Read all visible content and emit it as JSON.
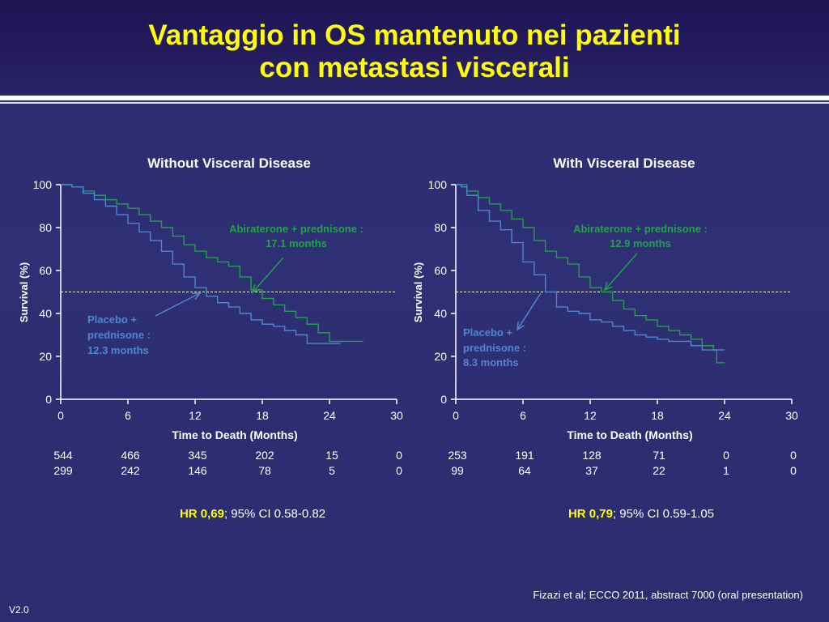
{
  "header": {
    "title_line1": "Vantaggio in OS mantenuto nei pazienti",
    "title_line2": "con metastasi viscerali"
  },
  "colors": {
    "title": "#ffff00",
    "abiraterone": "#22a24a",
    "placebo": "#4f86d0",
    "hr": "#ffff00",
    "background": "#2c2d70"
  },
  "chart_data": [
    {
      "type": "line",
      "title": "Without Visceral Disease",
      "xlabel": "Time to Death (Months)",
      "ylabel": "Survival (%)",
      "xlim": [
        0,
        30
      ],
      "ylim": [
        0,
        100
      ],
      "xticks": [
        "0",
        "6",
        "12",
        "18",
        "24",
        "30"
      ],
      "yticks": [
        "0",
        "20",
        "40",
        "60",
        "80",
        "100"
      ],
      "reference_line_y": 50,
      "series": [
        {
          "name": "Abiraterone + prednisone",
          "color": "#22a24a",
          "points": [
            [
              0,
              100
            ],
            [
              1,
              99
            ],
            [
              2,
              97
            ],
            [
              3,
              95
            ],
            [
              4,
              93
            ],
            [
              5,
              91
            ],
            [
              6,
              89
            ],
            [
              7,
              86
            ],
            [
              8,
              83
            ],
            [
              9,
              80
            ],
            [
              10,
              76
            ],
            [
              11,
              72
            ],
            [
              12,
              69
            ],
            [
              13,
              66
            ],
            [
              14,
              64
            ],
            [
              15,
              62
            ],
            [
              16,
              57
            ],
            [
              17,
              51
            ],
            [
              18,
              47
            ],
            [
              19,
              44
            ],
            [
              20,
              41
            ],
            [
              21,
              38
            ],
            [
              22,
              35
            ],
            [
              23,
              31
            ],
            [
              24,
              27
            ],
            [
              25,
              27
            ],
            [
              26,
              27
            ],
            [
              27,
              27
            ]
          ]
        },
        {
          "name": "Placebo + prednisone",
          "color": "#4f86d0",
          "points": [
            [
              0,
              100
            ],
            [
              1,
              99
            ],
            [
              2,
              96
            ],
            [
              3,
              93
            ],
            [
              4,
              90
            ],
            [
              5,
              86
            ],
            [
              6,
              82
            ],
            [
              7,
              78
            ],
            [
              8,
              74
            ],
            [
              9,
              69
            ],
            [
              10,
              63
            ],
            [
              11,
              57
            ],
            [
              12,
              52
            ],
            [
              13,
              48
            ],
            [
              14,
              45
            ],
            [
              15,
              43
            ],
            [
              16,
              40
            ],
            [
              17,
              37
            ],
            [
              18,
              35
            ],
            [
              19,
              34
            ],
            [
              20,
              32
            ],
            [
              21,
              30
            ],
            [
              22,
              26
            ],
            [
              23,
              26
            ],
            [
              24,
              26
            ],
            [
              25,
              26
            ]
          ]
        }
      ],
      "annotations": [
        {
          "name": "abi",
          "line1": "Abiraterone + prednisone :",
          "line2": "17.1 months"
        },
        {
          "name": "pla",
          "line1": "Placebo +",
          "line2": "prednisone :",
          "line3": "12.3 months"
        }
      ],
      "risk_table": {
        "abiraterone": [
          "544",
          "466",
          "345",
          "202",
          "15",
          "0"
        ],
        "placebo": [
          "299",
          "242",
          "146",
          "78",
          "5",
          "0"
        ]
      },
      "hr": {
        "label": "HR 0,69",
        "rest": "; 95% CI 0.58-0.82"
      }
    },
    {
      "type": "line",
      "title": "With Visceral Disease",
      "xlabel": "Time to Death (Months)",
      "ylabel": "Survival (%)",
      "xlim": [
        0,
        30
      ],
      "ylim": [
        0,
        100
      ],
      "xticks": [
        "0",
        "6",
        "12",
        "18",
        "24",
        "30"
      ],
      "yticks": [
        "0",
        "20",
        "40",
        "60",
        "80",
        "100"
      ],
      "reference_line_y": 50,
      "series": [
        {
          "name": "Abiraterone + prednisone",
          "color": "#22a24a",
          "points": [
            [
              0,
              100
            ],
            [
              0.5,
              100
            ],
            [
              1,
              97
            ],
            [
              2,
              94
            ],
            [
              3,
              91
            ],
            [
              4,
              88
            ],
            [
              5,
              84
            ],
            [
              6,
              80
            ],
            [
              7,
              74
            ],
            [
              8,
              69
            ],
            [
              9,
              66
            ],
            [
              10,
              63
            ],
            [
              11,
              57
            ],
            [
              12,
              52
            ],
            [
              13,
              50
            ],
            [
              14,
              46
            ],
            [
              15,
              42
            ],
            [
              16,
              39
            ],
            [
              17,
              37
            ],
            [
              18,
              34
            ],
            [
              19,
              32
            ],
            [
              20,
              30
            ],
            [
              21,
              28
            ],
            [
              22,
              25
            ],
            [
              23,
              23
            ],
            [
              23.3,
              17
            ],
            [
              24,
              17
            ]
          ]
        },
        {
          "name": "Placebo + prednisone",
          "color": "#4f86d0",
          "points": [
            [
              0,
              100
            ],
            [
              0.5,
              99
            ],
            [
              1,
              95
            ],
            [
              2,
              88
            ],
            [
              3,
              83
            ],
            [
              4,
              79
            ],
            [
              5,
              73
            ],
            [
              6,
              64
            ],
            [
              7,
              58
            ],
            [
              8,
              50
            ],
            [
              9,
              43
            ],
            [
              10,
              41
            ],
            [
              11,
              40
            ],
            [
              12,
              37
            ],
            [
              13,
              36
            ],
            [
              14,
              34
            ],
            [
              15,
              32
            ],
            [
              16,
              30
            ],
            [
              17,
              29
            ],
            [
              18,
              28
            ],
            [
              19,
              27
            ],
            [
              20,
              27
            ],
            [
              21,
              25
            ],
            [
              22,
              23
            ],
            [
              23,
              23
            ],
            [
              24,
              23
            ]
          ]
        }
      ],
      "annotations": [
        {
          "name": "abi",
          "line1": "Abiraterone + prednisone :",
          "line2": "12.9 months"
        },
        {
          "name": "pla",
          "line1": "Placebo +",
          "line2": "prednisone :",
          "line3": "8.3 months"
        }
      ],
      "risk_table": {
        "abiraterone": [
          "253",
          "191",
          "128",
          "71",
          "0",
          "0"
        ],
        "placebo": [
          "99",
          "64",
          "37",
          "22",
          "1",
          "0"
        ]
      },
      "hr": {
        "label": "HR 0,79",
        "rest": "; 95% CI 0.59-1.05"
      }
    }
  ],
  "footer": {
    "citation": "Fizazi et al; ECCO 2011, abstract 7000 (oral presentation)",
    "version": "V2.0"
  }
}
